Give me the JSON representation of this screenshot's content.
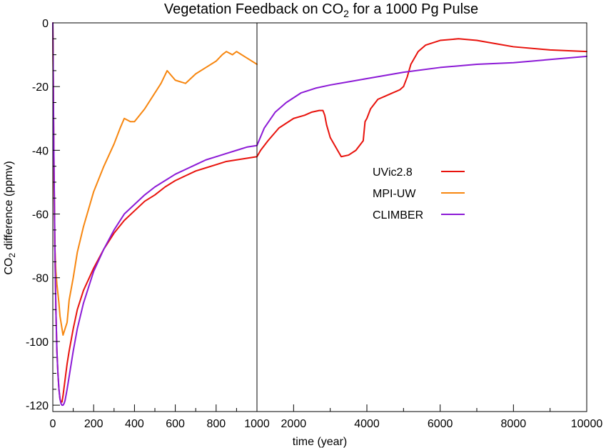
{
  "chart_data": {
    "type": "line",
    "title": "Vegetation Feedback on CO₂ for a 1000 Pg Pulse",
    "title_parts": [
      "Vegetation Feedback on CO",
      "2",
      " for a 1000 Pg Pulse"
    ],
    "xlabel": "time (year)",
    "ylabel": "CO₂ difference (ppmv)",
    "ylabel_parts": [
      "CO",
      "2",
      " difference (ppmv)"
    ],
    "legend_position": "center-right",
    "grid": false,
    "x_axis": {
      "break_at": 1000,
      "left_segment_range": [
        0,
        1000
      ],
      "right_segment_range": [
        1000,
        10000
      ],
      "left_ticks": [
        0,
        200,
        400,
        600,
        800,
        1000
      ],
      "left_tick_labels": [
        "0",
        "200",
        "400",
        "600",
        "800",
        "1000"
      ],
      "right_ticks": [
        2000,
        4000,
        6000,
        8000,
        10000
      ],
      "right_tick_labels": [
        "2000",
        "4000",
        "6000",
        "8000",
        "10000"
      ]
    },
    "y_axis": {
      "range": [
        -122,
        0
      ],
      "ticks": [
        0,
        -20,
        -40,
        -60,
        -80,
        -100,
        -120
      ],
      "tick_labels": [
        "0",
        "-20",
        "-40",
        "-60",
        "-80",
        "-100",
        "-120"
      ]
    },
    "series": [
      {
        "name": "UVic2.8",
        "color": "#e8120c",
        "x": [
          0,
          5,
          10,
          15,
          20,
          25,
          30,
          35,
          40,
          45,
          50,
          60,
          70,
          80,
          100,
          120,
          150,
          200,
          250,
          300,
          350,
          400,
          450,
          500,
          550,
          600,
          650,
          700,
          750,
          800,
          850,
          900,
          950,
          1000,
          1100,
          1300,
          1600,
          2000,
          2300,
          2500,
          2700,
          2800,
          2850,
          2900,
          3000,
          3200,
          3300,
          3500,
          3700,
          3900,
          3950,
          4000,
          4100,
          4300,
          4500,
          4700,
          4900,
          5000,
          5100,
          5200,
          5400,
          5600,
          6000,
          6500,
          7000,
          7500,
          8000,
          9000,
          10000
        ],
        "y": [
          0,
          -40,
          -70,
          -90,
          -103,
          -110,
          -115,
          -118,
          -119,
          -119,
          -117,
          -112,
          -107,
          -103,
          -96,
          -90,
          -84,
          -77,
          -71,
          -66,
          -62,
          -59,
          -56,
          -54,
          -51.5,
          -49.5,
          -48,
          -46.5,
          -45.5,
          -44.5,
          -43.5,
          -43,
          -42.5,
          -42,
          -40,
          -37,
          -33,
          -30,
          -29,
          -28,
          -27.5,
          -27.5,
          -29,
          -32,
          -36,
          -40,
          -42,
          -41.5,
          -40,
          -37,
          -31,
          -30,
          -27,
          -24,
          -23,
          -22,
          -21,
          -20,
          -17,
          -13,
          -9,
          -7,
          -5.5,
          -5,
          -5.5,
          -6.5,
          -7.5,
          -8.5,
          -9
        ]
      },
      {
        "name": "MPI-UW",
        "color": "#f7860f",
        "x": [
          0,
          5,
          10,
          15,
          20,
          25,
          30,
          35,
          40,
          45,
          50,
          55,
          60,
          70,
          80,
          100,
          120,
          150,
          200,
          250,
          300,
          330,
          350,
          380,
          400,
          450,
          500,
          530,
          560,
          600,
          650,
          700,
          750,
          800,
          830,
          850,
          880,
          900,
          950,
          1000
        ],
        "y": [
          0,
          -50,
          -70,
          -78,
          -82,
          -85,
          -88,
          -92,
          -94,
          -96,
          -98,
          -97,
          -96,
          -94,
          -87,
          -80,
          -72,
          -64,
          -53,
          -45,
          -38,
          -33,
          -30,
          -31,
          -31,
          -27,
          -22,
          -19,
          -15,
          -18,
          -19,
          -16,
          -14,
          -12,
          -10,
          -9,
          -10,
          -9,
          -11,
          -13
        ]
      },
      {
        "name": "CLIMBER",
        "color": "#8c1ad6",
        "x": [
          0,
          5,
          10,
          15,
          20,
          25,
          30,
          35,
          40,
          45,
          50,
          55,
          60,
          70,
          80,
          100,
          120,
          150,
          200,
          250,
          300,
          350,
          400,
          450,
          500,
          550,
          600,
          650,
          700,
          750,
          800,
          850,
          900,
          950,
          1000,
          1200,
          1500,
          1800,
          2200,
          2600,
          3000,
          3500,
          4000,
          5000,
          6000,
          7000,
          8000,
          9000,
          10000
        ],
        "y": [
          0,
          -40,
          -70,
          -90,
          -103,
          -110,
          -115,
          -118,
          -119.5,
          -120,
          -120,
          -119.5,
          -118.5,
          -115,
          -111,
          -103,
          -96,
          -88,
          -78,
          -71,
          -65,
          -60,
          -57,
          -54,
          -51.5,
          -49.5,
          -47.5,
          -46,
          -44.5,
          -43,
          -42,
          -41,
          -40,
          -39,
          -38.5,
          -33,
          -28,
          -25,
          -22,
          -20.5,
          -19.5,
          -18.5,
          -17.5,
          -15.5,
          -14,
          -13,
          -12.5,
          -11.5,
          -10.5
        ]
      }
    ]
  }
}
